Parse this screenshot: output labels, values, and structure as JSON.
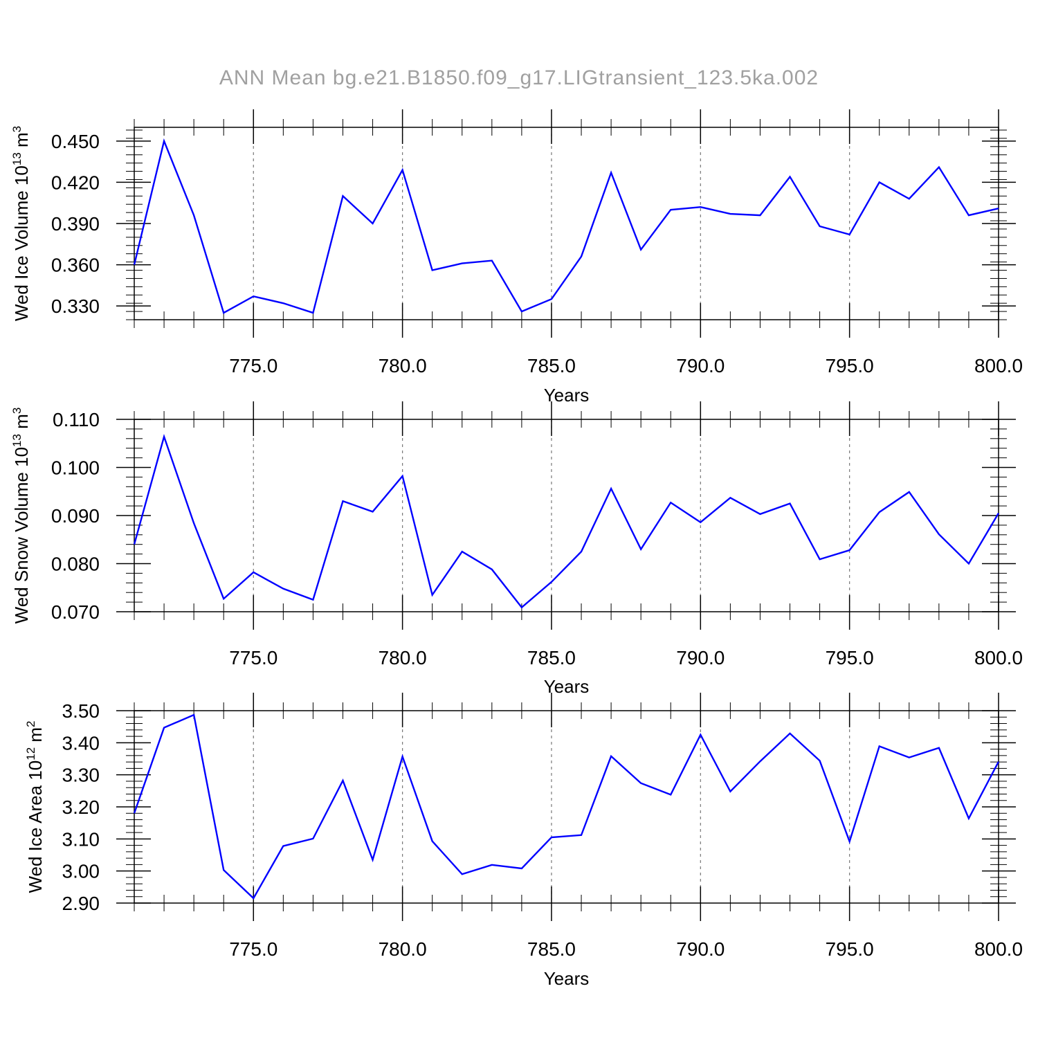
{
  "figure": {
    "title": "ANN Mean bg.e21.B1850.f09_g17.LIGtransient_123.5ka.002"
  },
  "chart_data": [
    {
      "type": "line",
      "title": "",
      "xlabel": "Years",
      "ylabel": {
        "base": "Wed Ice Volume 10",
        "exp": "13",
        "unit": " m",
        "unit_exp": "3"
      },
      "xlim": [
        771,
        800
      ],
      "ylim": [
        0.32,
        0.46
      ],
      "xticks": [
        775.0,
        780.0,
        785.0,
        790.0,
        795.0,
        800.0
      ],
      "xtick_labels": [
        "775.0",
        "780.0",
        "785.0",
        "790.0",
        "795.0",
        "800.0"
      ],
      "yticks": [
        0.33,
        0.36,
        0.39,
        0.42,
        0.45
      ],
      "ytick_labels": [
        "0.330",
        "0.360",
        "0.390",
        "0.420",
        "0.450"
      ],
      "grid": "vertical dashed at major x ticks",
      "line_color": "#0000ff",
      "series": [
        {
          "x": [
            771,
            772,
            773,
            774,
            775,
            776,
            777,
            778,
            779,
            780,
            781,
            782,
            783,
            784,
            785,
            786,
            787,
            788,
            789,
            790,
            791,
            792,
            793,
            794,
            795,
            796,
            797,
            798,
            799,
            800
          ],
          "values": [
            0.36,
            0.45,
            0.396,
            0.325,
            0.337,
            0.332,
            0.325,
            0.41,
            0.39,
            0.429,
            0.356,
            0.361,
            0.363,
            0.326,
            0.335,
            0.366,
            0.427,
            0.371,
            0.4,
            0.402,
            0.397,
            0.396,
            0.424,
            0.388,
            0.382,
            0.42,
            0.408,
            0.431,
            0.396,
            0.401
          ]
        }
      ]
    },
    {
      "type": "line",
      "title": "",
      "xlabel": "Years",
      "ylabel": {
        "base": "Wed Snow Volume 10",
        "exp": "13",
        "unit": " m",
        "unit_exp": "3"
      },
      "xlim": [
        771,
        800
      ],
      "ylim": [
        0.07,
        0.11
      ],
      "xticks": [
        775.0,
        780.0,
        785.0,
        790.0,
        795.0,
        800.0
      ],
      "xtick_labels": [
        "775.0",
        "780.0",
        "785.0",
        "790.0",
        "795.0",
        "800.0"
      ],
      "yticks": [
        0.07,
        0.08,
        0.09,
        0.1,
        0.11
      ],
      "ytick_labels": [
        "0.070",
        "0.080",
        "0.090",
        "0.100",
        "0.110"
      ],
      "grid": "vertical dashed at major x ticks",
      "line_color": "#0000ff",
      "series": [
        {
          "x": [
            771,
            772,
            773,
            774,
            775,
            776,
            777,
            778,
            779,
            780,
            781,
            782,
            783,
            784,
            785,
            786,
            787,
            788,
            789,
            790,
            791,
            792,
            793,
            794,
            795,
            796,
            797,
            798,
            799,
            800
          ],
          "values": [
            0.084,
            0.1064,
            0.0884,
            0.0727,
            0.0782,
            0.0748,
            0.0725,
            0.093,
            0.0908,
            0.0982,
            0.0735,
            0.0825,
            0.0788,
            0.0709,
            0.0762,
            0.0825,
            0.0956,
            0.083,
            0.0927,
            0.0886,
            0.0937,
            0.0903,
            0.0925,
            0.0809,
            0.0828,
            0.0907,
            0.0949,
            0.0861,
            0.08,
            0.0905
          ]
        }
      ]
    },
    {
      "type": "line",
      "title": "",
      "xlabel": "Years",
      "ylabel": {
        "base": "Wed Ice Area 10",
        "exp": "12",
        "unit": " m",
        "unit_exp": "2"
      },
      "xlim": [
        771,
        800
      ],
      "ylim": [
        2.9,
        3.5
      ],
      "xticks": [
        775.0,
        780.0,
        785.0,
        790.0,
        795.0,
        800.0
      ],
      "xtick_labels": [
        "775.0",
        "780.0",
        "785.0",
        "790.0",
        "795.0",
        "800.0"
      ],
      "yticks": [
        2.9,
        3.0,
        3.1,
        3.2,
        3.3,
        3.4,
        3.5
      ],
      "ytick_labels": [
        "2.90",
        "3.00",
        "3.10",
        "3.20",
        "3.30",
        "3.40",
        "3.50"
      ],
      "grid": "vertical dashed at major x ticks",
      "line_color": "#0000ff",
      "series": [
        {
          "x": [
            771,
            772,
            773,
            774,
            775,
            776,
            777,
            778,
            779,
            780,
            781,
            782,
            783,
            784,
            785,
            786,
            787,
            788,
            789,
            790,
            791,
            792,
            793,
            794,
            795,
            796,
            797,
            798,
            799,
            800
          ],
          "values": [
            3.18,
            3.447,
            3.487,
            3.003,
            2.915,
            3.078,
            3.101,
            3.282,
            3.035,
            3.357,
            3.093,
            2.99,
            3.019,
            3.008,
            3.105,
            3.112,
            3.358,
            3.274,
            3.238,
            3.425,
            3.248,
            3.342,
            3.429,
            3.344,
            3.092,
            3.389,
            3.354,
            3.384,
            3.164,
            3.341
          ]
        }
      ]
    }
  ]
}
